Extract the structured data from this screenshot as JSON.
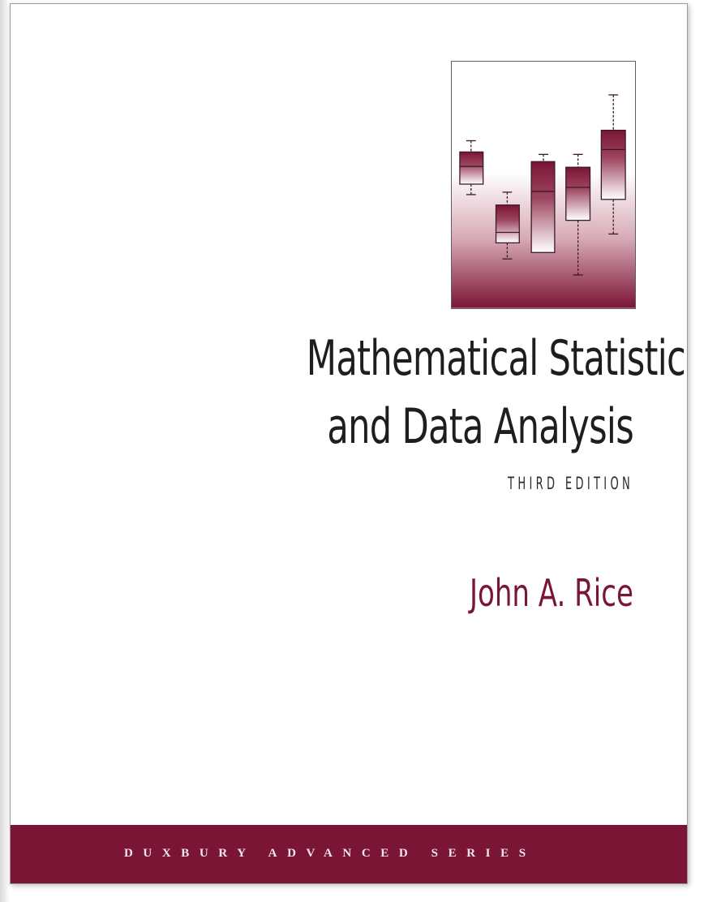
{
  "cover": {
    "title_line1": "Mathematical Statistics",
    "title_line2": "and Data Analysis",
    "edition": "Third Edition",
    "author": "John A. Rice",
    "series": "DUXBURY ADVANCED SERIES",
    "illustration_icon": "box-plot-illustration"
  },
  "colors": {
    "accent": "#7a1535",
    "text": "#1e1e1e"
  }
}
